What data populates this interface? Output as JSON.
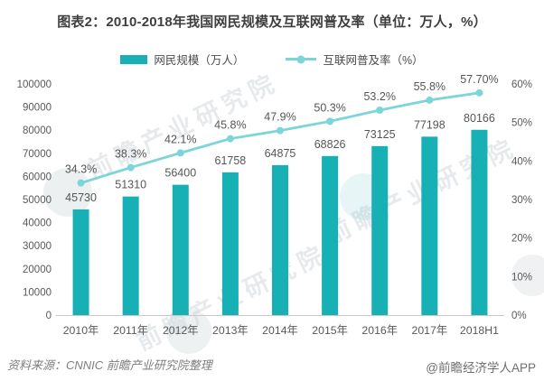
{
  "header": {
    "title": "图表2：2010-2018年我国网民规模及互联网普及率（单位：万人，%）"
  },
  "footer": {
    "source": "资料来源：CNNIC 前瞻产业研究院整理",
    "credit": "@前瞻经济学人APP"
  },
  "watermark": {
    "text": "前瞻产业研究院"
  },
  "colors": {
    "bar": "#17b0b5",
    "line": "#7cd5d9",
    "axis_text": "#595959",
    "label_text": "#565656",
    "axis_line": "#c9c9c9",
    "title_text": "#3f3f3f"
  },
  "chart_data": {
    "type": "combo-bar-line",
    "title": "图表2：2010-2018年我国网民规模及互联网普及率（单位：万人，%）",
    "categories": [
      "2010年",
      "2011年",
      "2012年",
      "2013年",
      "2014年",
      "2015年",
      "2016年",
      "2017年",
      "2018H1"
    ],
    "series": [
      {
        "name": "网民规模（万人）",
        "type": "bar",
        "y_axis": "left",
        "color": "#17b0b5",
        "values": [
          45730,
          51310,
          56400,
          61758,
          64875,
          68826,
          73125,
          77198,
          80166
        ],
        "data_labels": [
          "45730",
          "51310",
          "56400",
          "61758",
          "64875",
          "68826",
          "73125",
          "77198",
          "80166"
        ]
      },
      {
        "name": "互联网普及率（%）",
        "type": "line",
        "y_axis": "right",
        "color": "#7cd5d9",
        "values": [
          34.3,
          38.3,
          42.1,
          45.8,
          47.9,
          50.3,
          53.2,
          55.8,
          57.7
        ],
        "data_labels": [
          "34.3%",
          "38.3%",
          "42.1%",
          "45.8%",
          "47.9%",
          "50.3%",
          "53.2%",
          "55.8%",
          "57.70%"
        ]
      }
    ],
    "left_axis": {
      "min": 0,
      "max": 100000,
      "step": 10000,
      "tick_labels": [
        "0",
        "10000",
        "20000",
        "30000",
        "40000",
        "50000",
        "60000",
        "70000",
        "80000",
        "90000",
        "100000"
      ]
    },
    "right_axis": {
      "min": 0,
      "max": 60,
      "step": 10,
      "tick_labels": [
        "0%",
        "10%",
        "20%",
        "30%",
        "40%",
        "50%",
        "60%"
      ]
    },
    "grid": false,
    "legend_position": "top"
  }
}
